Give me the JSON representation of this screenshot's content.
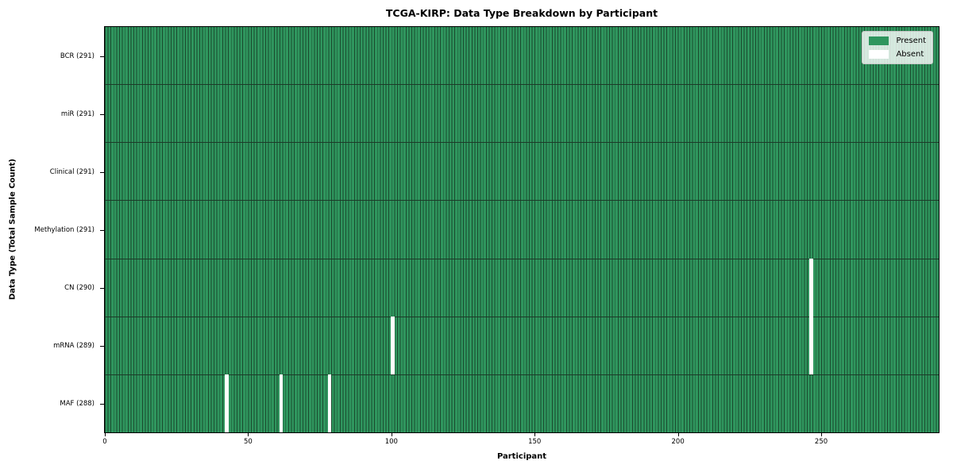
{
  "chart_data": {
    "type": "heatmap",
    "title": "TCGA-KIRP: Data Type Breakdown by Participant",
    "xlabel": "Participant",
    "ylabel": "Data Type (Total Sample Count)",
    "n_participants": 291,
    "x_ticks": [
      0,
      50,
      100,
      150,
      200,
      250
    ],
    "x_range": [
      0,
      291
    ],
    "grid": false,
    "rows": [
      {
        "data_type": "BCR",
        "label": "BCR (291)",
        "present_count": 291,
        "absent_participants": []
      },
      {
        "data_type": "miR",
        "label": "miR (291)",
        "present_count": 291,
        "absent_participants": []
      },
      {
        "data_type": "Clinical",
        "label": "Clinical (291)",
        "present_count": 291,
        "absent_participants": []
      },
      {
        "data_type": "Methylation",
        "label": "Methylation (291)",
        "present_count": 291,
        "absent_participants": []
      },
      {
        "data_type": "CN",
        "label": "CN (290)",
        "present_count": 290,
        "absent_participants": [
          246
        ]
      },
      {
        "data_type": "mRNA",
        "label": "mRNA (289)",
        "present_count": 289,
        "absent_participants": [
          100,
          246
        ]
      },
      {
        "data_type": "MAF",
        "label": "MAF (288)",
        "present_count": 288,
        "absent_participants": [
          42,
          61,
          78
        ]
      }
    ],
    "legend": {
      "position": "upper right",
      "entries": [
        {
          "label": "Present",
          "color": "#2F965E"
        },
        {
          "label": "Absent",
          "color": "#FFFFFF"
        }
      ]
    },
    "colors": {
      "present": "#2F965E",
      "absent": "#FFFFFF",
      "cell_edge": "#1A4A2E",
      "row_divider": "#1C3A28",
      "axis": "#000000",
      "legend_bg": "rgba(255,255,255,0.8)",
      "legend_border": "#C8C8C8"
    }
  }
}
